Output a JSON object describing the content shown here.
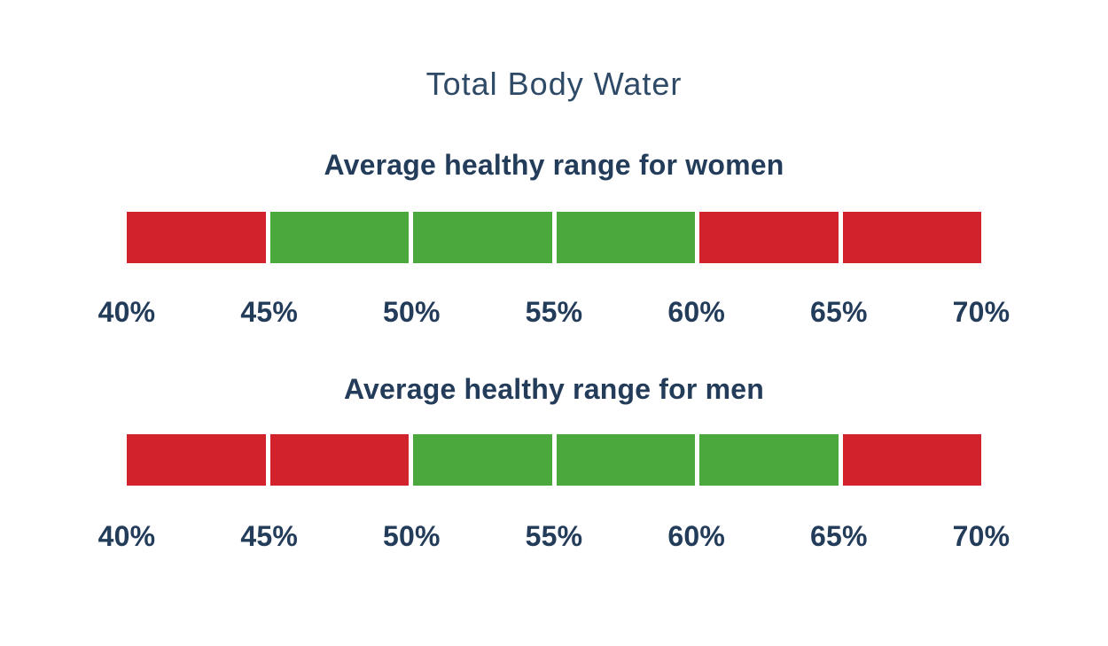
{
  "page": {
    "title": "Total Body Water",
    "background": "#ffffff"
  },
  "colors": {
    "healthy_green": "#4ba83c",
    "unhealthy_red": "#d2232c",
    "title_text": "#2e4a66",
    "label_text": "#233c5a"
  },
  "chart_data": [
    {
      "type": "bar",
      "variant": "range-strip",
      "title": "Average healthy range for women",
      "xlabel": "",
      "ylabel": "",
      "xlim": [
        40,
        70
      ],
      "axis_unit": "%",
      "tick_labels": [
        "40%",
        "45%",
        "50%",
        "55%",
        "60%",
        "65%",
        "70%"
      ],
      "healthy_range": [
        45,
        60
      ],
      "legend": "none",
      "grid": false,
      "segments": [
        {
          "from": 40,
          "to": 45,
          "status": "unhealthy",
          "color": "#d2232c"
        },
        {
          "from": 45,
          "to": 50,
          "status": "healthy",
          "color": "#4ba83c"
        },
        {
          "from": 50,
          "to": 55,
          "status": "healthy",
          "color": "#4ba83c"
        },
        {
          "from": 55,
          "to": 60,
          "status": "healthy",
          "color": "#4ba83c"
        },
        {
          "from": 60,
          "to": 65,
          "status": "unhealthy",
          "color": "#d2232c"
        },
        {
          "from": 65,
          "to": 70,
          "status": "unhealthy",
          "color": "#d2232c"
        }
      ]
    },
    {
      "type": "bar",
      "variant": "range-strip",
      "title": "Average healthy range for men",
      "xlabel": "",
      "ylabel": "",
      "xlim": [
        40,
        70
      ],
      "axis_unit": "%",
      "tick_labels": [
        "40%",
        "45%",
        "50%",
        "55%",
        "60%",
        "65%",
        "70%"
      ],
      "healthy_range": [
        50,
        65
      ],
      "legend": "none",
      "grid": false,
      "segments": [
        {
          "from": 40,
          "to": 45,
          "status": "unhealthy",
          "color": "#d2232c"
        },
        {
          "from": 45,
          "to": 50,
          "status": "unhealthy",
          "color": "#d2232c"
        },
        {
          "from": 50,
          "to": 55,
          "status": "healthy",
          "color": "#4ba83c"
        },
        {
          "from": 55,
          "to": 60,
          "status": "healthy",
          "color": "#4ba83c"
        },
        {
          "from": 60,
          "to": 65,
          "status": "healthy",
          "color": "#4ba83c"
        },
        {
          "from": 65,
          "to": 70,
          "status": "unhealthy",
          "color": "#d2232c"
        }
      ]
    }
  ]
}
